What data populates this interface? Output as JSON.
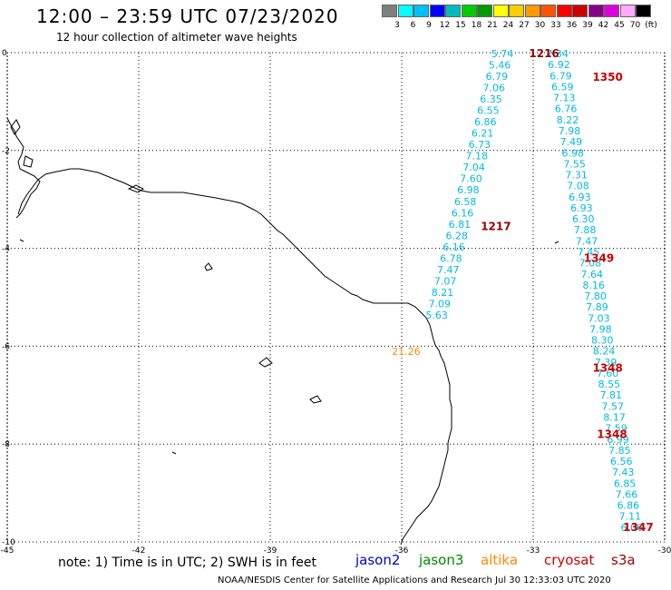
{
  "title": "12:00 – 23:59 UTC 07/23/2020",
  "subtitle": "12 hour collection of altimeter wave heights",
  "legend": {
    "unit": "(ft)",
    "colors": [
      "#7f7f7f",
      "#00ffff",
      "#00bfff",
      "#0000ff",
      "#00bbbb",
      "#00cc00",
      "#009900",
      "#ffff00",
      "#ffcc00",
      "#ff9900",
      "#ff5500",
      "#ff0000",
      "#cc0000",
      "#880088",
      "#dd00dd",
      "#ffaaff",
      "#000000"
    ],
    "labels": [
      "3",
      "6",
      "9",
      "12",
      "15",
      "18",
      "21",
      "24",
      "27",
      "30",
      "33",
      "36",
      "39",
      "42",
      "45",
      "70"
    ]
  },
  "axes": {
    "x_ticks": [
      "-45",
      "-42",
      "-39",
      "-36",
      "-33",
      "-30"
    ],
    "y_ticks": [
      "0",
      "-2",
      "-4",
      "-6",
      "-8",
      "-10"
    ],
    "lon_range": [
      -45,
      -30
    ],
    "lat_range": [
      0,
      -10
    ]
  },
  "colors": {
    "jason2": "#0000cc",
    "jason3": "#008800",
    "altika": "#ff8800",
    "cryosat": "#cc0000",
    "s3a": "#990000",
    "cyan_values": "#00bbdd"
  },
  "tracks": [
    {
      "color": "#00bbdd",
      "values": [
        "5.74",
        "5.46",
        "6.79",
        "7.06",
        "6.35",
        "6.55",
        "6.86",
        "6.21",
        "6.73",
        "7.18",
        "7.04",
        "7.60",
        "6.98",
        "6.58",
        "6.16",
        "6.81",
        "6.28",
        "6.16",
        "6.78",
        "7.47",
        "7.07",
        "8.21",
        "7.09",
        "5.63"
      ],
      "start": {
        "lat": -0.02,
        "lon": -33.7
      },
      "end": {
        "lat": -5.36,
        "lon": -35.2
      }
    },
    {
      "color": "#00bbdd",
      "values": [
        "7.34",
        "6.92",
        "6.79",
        "6.59",
        "7.13",
        "6.76",
        "8.22",
        "7.98",
        "7.49",
        "6.98",
        "7.55",
        "7.31",
        "7.08",
        "6.93",
        "6.93",
        "6.30",
        "7.88",
        "7.47",
        "7.45",
        "7.08",
        "7.64",
        "8.16",
        "7.80",
        "7.89",
        "7.03",
        "7.98",
        "8.30",
        "8.24",
        "7.39",
        "7.60",
        "8.55",
        "7.81",
        "7.57",
        "8.17",
        "7.59",
        "6.99",
        "7.85",
        "6.56",
        "7.43",
        "6.85",
        "7.66",
        "6.86",
        "7.11",
        "6.06"
      ],
      "start": {
        "lat": -0.02,
        "lon": -32.45
      },
      "end": {
        "lat": -9.7,
        "lon": -30.75
      }
    },
    {
      "color": "#ff8800",
      "values": [
        "21.26"
      ],
      "start": {
        "lat": -6.1,
        "lon": -35.9
      },
      "end": {
        "lat": -6.1,
        "lon": -35.9
      }
    }
  ],
  "pass_ids": [
    {
      "label": "1216",
      "color": "#990000",
      "lat": -0.02,
      "lon": -32.75
    },
    {
      "label": "1350",
      "color": "#cc0000",
      "lat": -0.5,
      "lon": -31.3
    },
    {
      "label": "1217",
      "color": "#990000",
      "lat": -3.55,
      "lon": -33.85
    },
    {
      "label": "1349",
      "color": "#cc0000",
      "lat": -4.2,
      "lon": -31.5
    },
    {
      "label": "1348",
      "color": "#cc0000",
      "lat": -6.45,
      "lon": -31.3
    },
    {
      "label": "1348",
      "color": "#cc0000",
      "lat": -7.8,
      "lon": -31.2
    },
    {
      "label": "1347",
      "color": "#cc0000",
      "lat": -9.7,
      "lon": -30.6
    }
  ],
  "footer": {
    "note": "note:  1) Time is in UTC;  2) SWH is in feet",
    "sats": [
      "jason2",
      "jason3",
      "altika",
      "cryosat",
      "s3a"
    ],
    "credit": "NOAA/NESDIS Center for Satellite Applications and Research     Jul 30 12:33:03 UTC 2020"
  }
}
